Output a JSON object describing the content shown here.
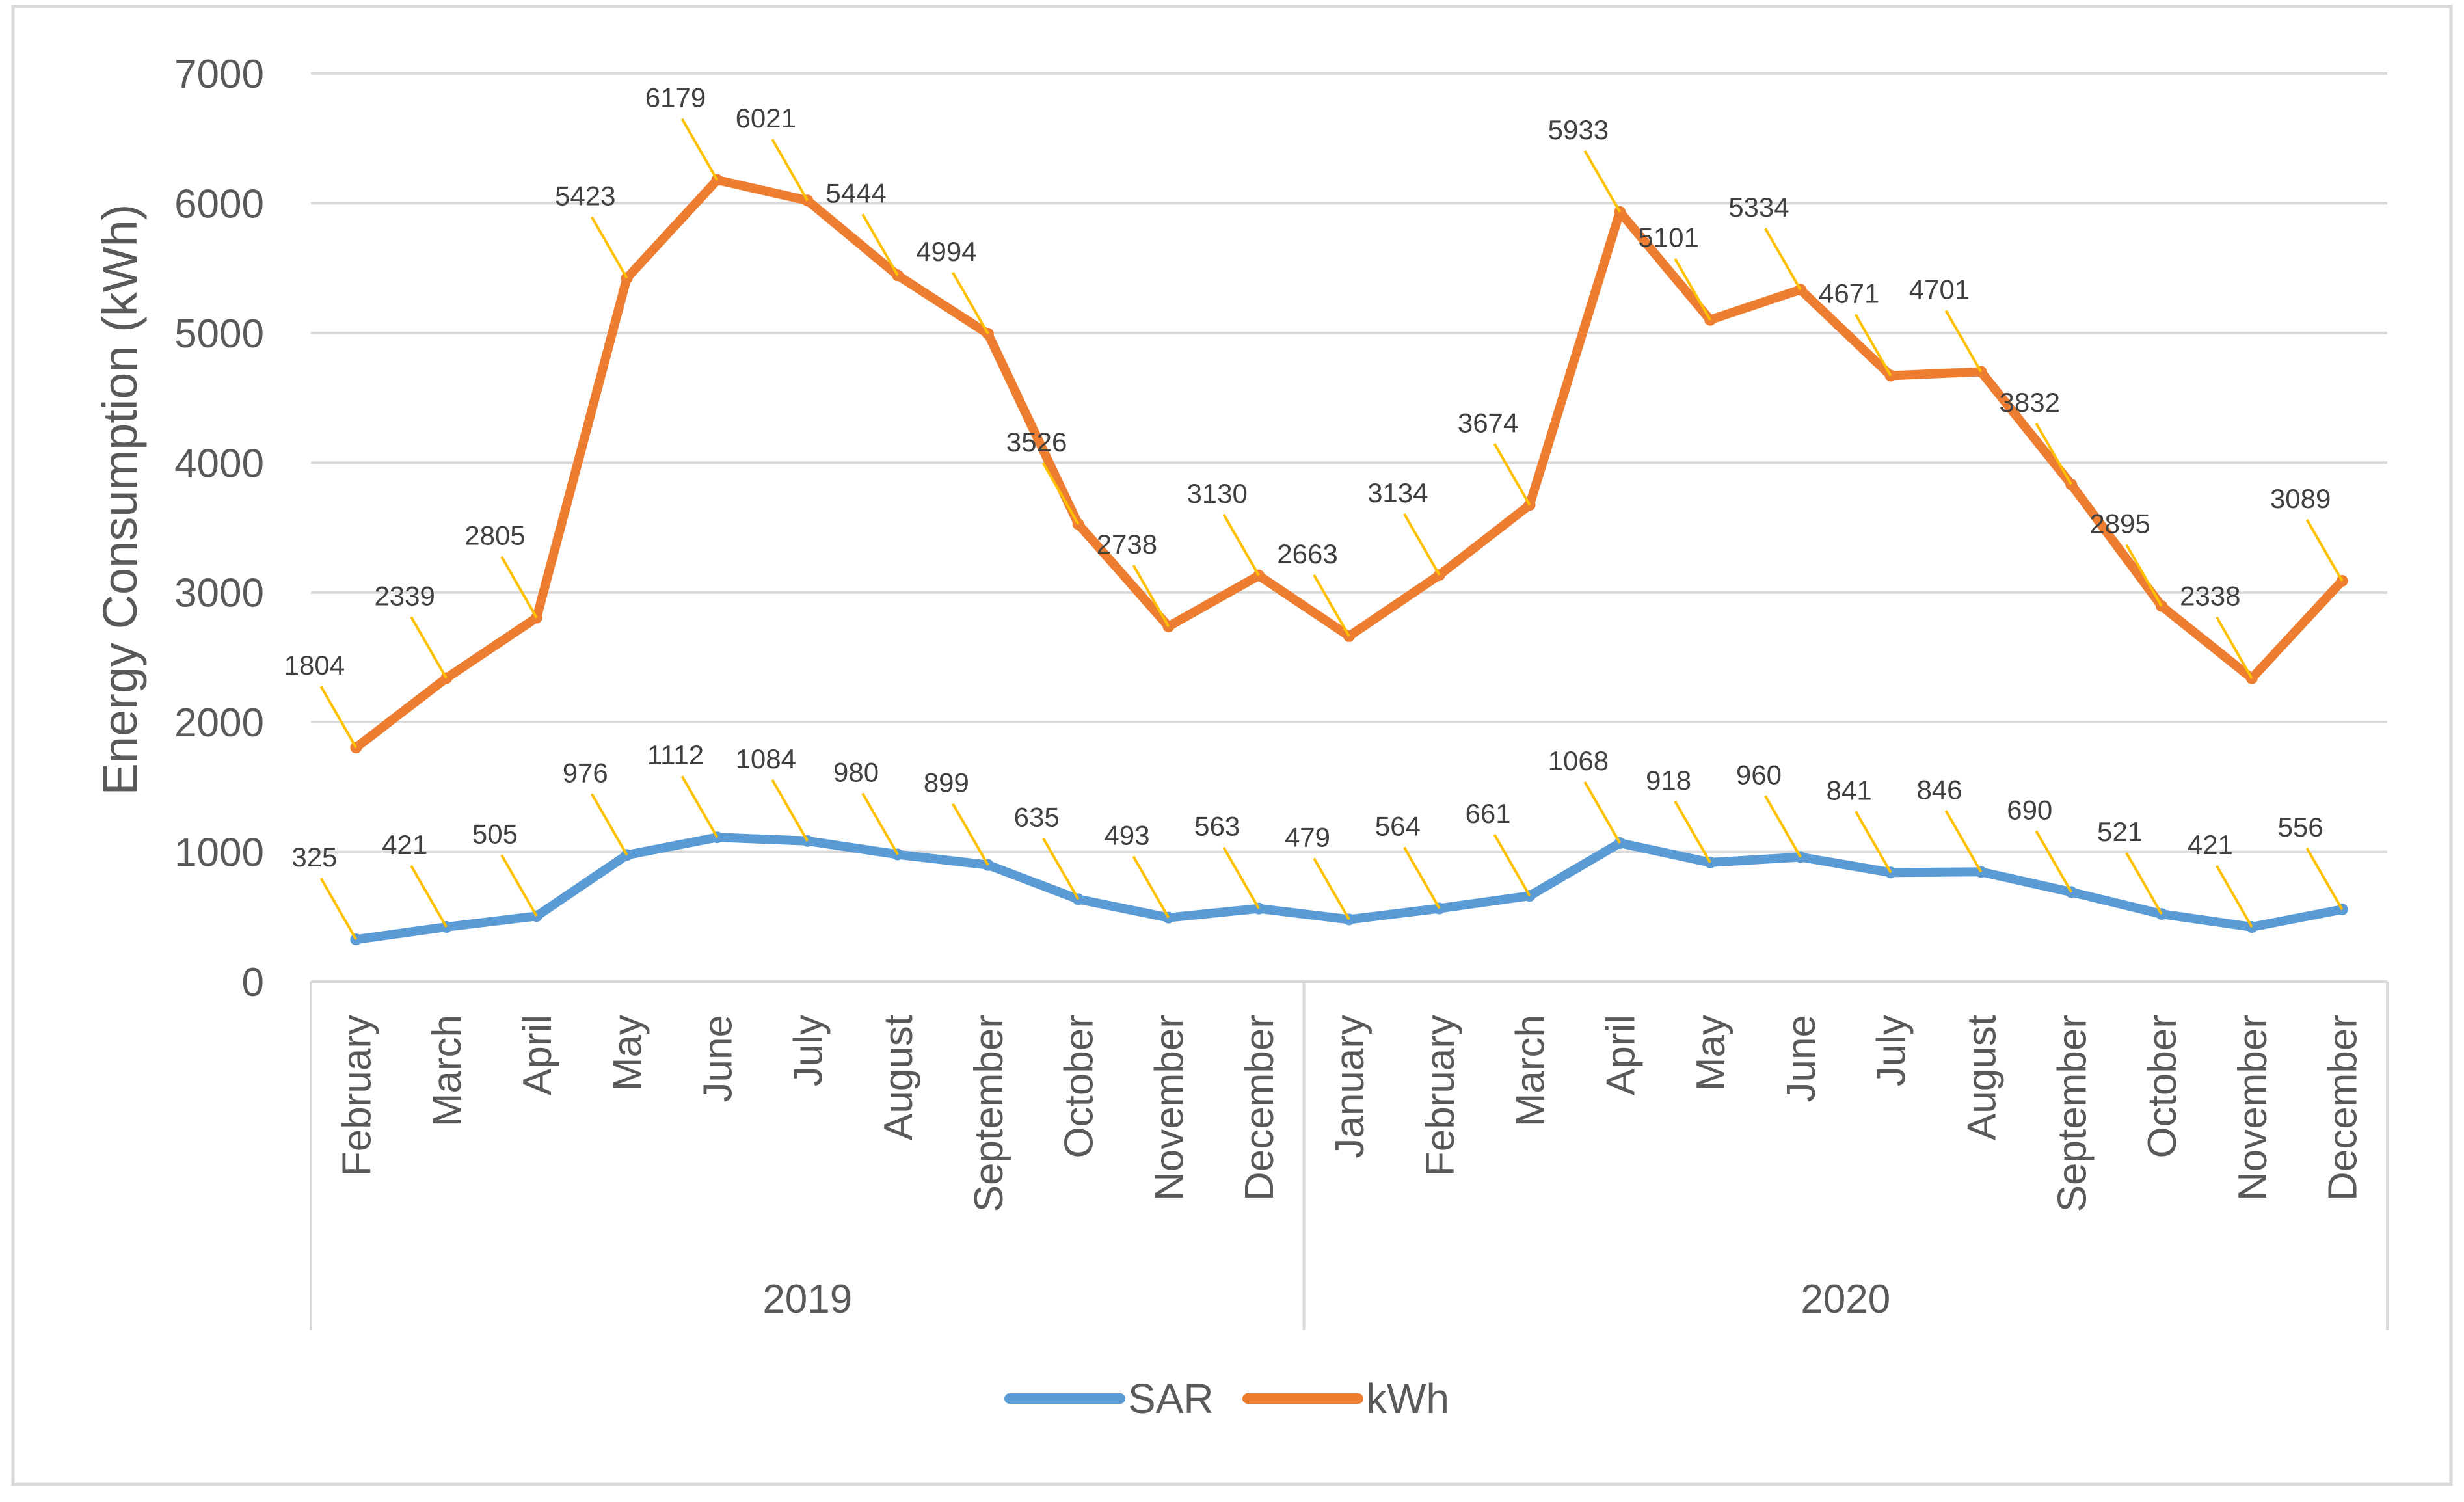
{
  "chart_data": {
    "type": "line",
    "title": "",
    "ylabel": "Energy Consumption (kWh)",
    "xlabel": "",
    "ylim": [
      0,
      7000
    ],
    "yticks": [
      "0",
      "1000",
      "2000",
      "3000",
      "4000",
      "5000",
      "6000",
      "7000"
    ],
    "grid": true,
    "legend_position": "bottom",
    "groups": [
      {
        "label": "2019",
        "count": 11
      },
      {
        "label": "2020",
        "count": 12
      }
    ],
    "categories": [
      "February",
      "March",
      "April",
      "May",
      "June",
      "July",
      "August",
      "September",
      "October",
      "November",
      "December",
      "January",
      "February",
      "March",
      "April",
      "May",
      "June",
      "July",
      "August",
      "September",
      "October",
      "November",
      "December"
    ],
    "series": [
      {
        "name": "SAR",
        "color": "#5B9BD5",
        "values": [
          325,
          421,
          505,
          976,
          1112,
          1084,
          980,
          899,
          635,
          493,
          563,
          479,
          564,
          661,
          1068,
          918,
          960,
          841,
          846,
          690,
          521,
          421,
          556
        ]
      },
      {
        "name": "kWh",
        "color": "#ED7D31",
        "values": [
          1804,
          2339,
          2805,
          5423,
          6179,
          6021,
          5444,
          4994,
          3526,
          2738,
          3130,
          2663,
          3134,
          3674,
          5933,
          5101,
          5334,
          4671,
          4701,
          3832,
          2895,
          2338,
          3089
        ]
      }
    ],
    "leader_color": "#FFC000"
  }
}
